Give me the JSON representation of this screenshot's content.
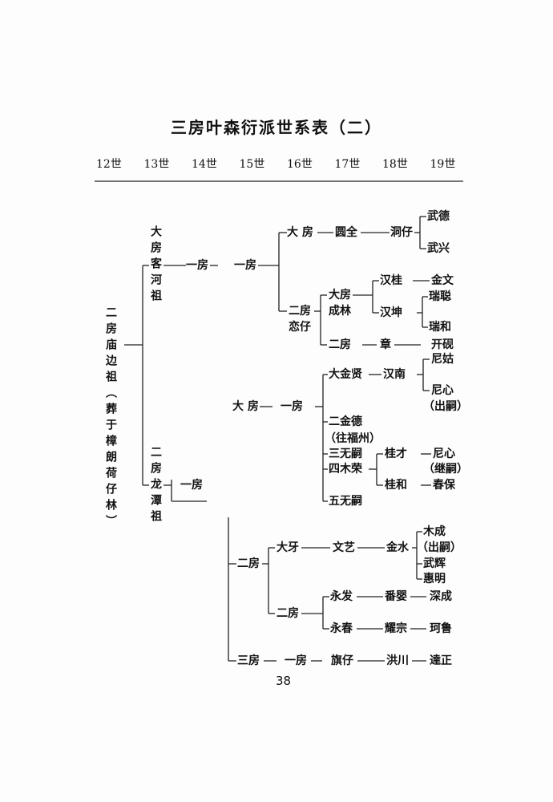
{
  "title": "三房叶森衍派世系表（二）",
  "generations": [
    "12世",
    "13世",
    "14世",
    "15世",
    "16世",
    "17世",
    "18世",
    "19世"
  ],
  "page_number": "38",
  "nodes": {
    "root": "二房庙边祖（葬于樟朗荷仔林）",
    "kehe": "大房客河祖",
    "kehe_g14": "一房",
    "kehe_g15": "一房",
    "dafang_a": "大 房",
    "yuanquan": "圆全",
    "dongzai": "洞仔",
    "wude": "武德",
    "wuxing": "武兴",
    "erfang_a": "二房",
    "lianzai": "恋仔",
    "dafang_b": "大房",
    "chenglin": "成林",
    "hangui": "汉桂",
    "jinwen": "金文",
    "hankun": "汉坤",
    "ruicong": "瑞聪",
    "ruihe": "瑞和",
    "erfang_b": "二房",
    "zhang": "章",
    "kaiyan": "开砚",
    "longtan": "二房龙潭祖",
    "longtan_g14": "一房",
    "dafang_c": "大 房",
    "yifang_c": "一房",
    "dajinxian": "大金贤",
    "hannan": "汉南",
    "nigu": "尼姑",
    "nixin_a": "尼心",
    "chusi_a": "（出嗣）",
    "erjinde": "二金德",
    "wangfuzhou": "（往福州）",
    "sanwusi": "三无嗣",
    "simurong": "四木荣",
    "guicai": "桂才",
    "nixin_b": "尼心",
    "jisi": "（继嗣）",
    "guihe": "桂和",
    "chunbao": "春保",
    "wuwusi": "五无嗣",
    "erfang_c": "二房",
    "daya": "大牙",
    "wenyi": "文艺",
    "jinshui": "金水",
    "mucheng": "木成",
    "chusi_b": "（出嗣）",
    "wuhui": "武辉",
    "huiming": "惠明",
    "erfang_d": "二房",
    "yongfa": "永发",
    "fanying": "番婴",
    "shencheng": "深成",
    "yongchun": "永春",
    "yaozong": "耀宗",
    "helu": "珂鲁",
    "sanfang": "三房",
    "yifang_d": "一房",
    "qizai": "旗仔",
    "hongchuan": "洪川",
    "dazheng": "達正"
  }
}
